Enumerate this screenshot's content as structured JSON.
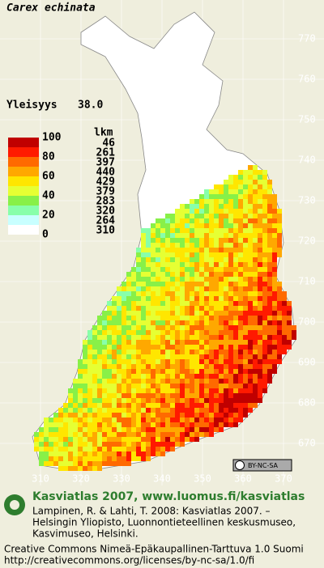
{
  "title": "Carex echinata",
  "frequency": {
    "label": "Yleisyys",
    "value": "38.0"
  },
  "legend": {
    "count_header": "lkm",
    "scale_labels": [
      100,
      80,
      60,
      40,
      20,
      0
    ],
    "counts": [
      46,
      261,
      397,
      440,
      429,
      379,
      283,
      320,
      264,
      310
    ],
    "colors": [
      "#c00000",
      "#ff1a00",
      "#ff6a00",
      "#ffa800",
      "#ffe600",
      "#e6ff33",
      "#88f048",
      "#88ffaa",
      "#c8ffff",
      "#ffffff"
    ]
  },
  "grid_y": [
    770,
    760,
    750,
    740,
    730,
    720,
    710,
    700,
    690,
    680,
    670
  ],
  "grid_x": [
    310,
    320,
    330,
    340,
    350,
    360,
    370
  ],
  "license_badge": "BY-NC-SA",
  "footer": {
    "heading": "Kasviatlas 2007, www.luomus.fi/kasviatlas",
    "citation": [
      "Lampinen, R. & Lahti, T. 2008: Kasviatlas 2007. –",
      "Helsingin Yliopisto, Luonnontieteellinen keskusmuseo,",
      "Kasvimuseo, Helsinki."
    ],
    "license": [
      "Creative Commons Nimeä-Epäkaupallinen-Tarttuva 1.0 Suomi",
      "http://creativecommons.org/licenses/by-nc-sa/1.0/fi"
    ]
  }
}
